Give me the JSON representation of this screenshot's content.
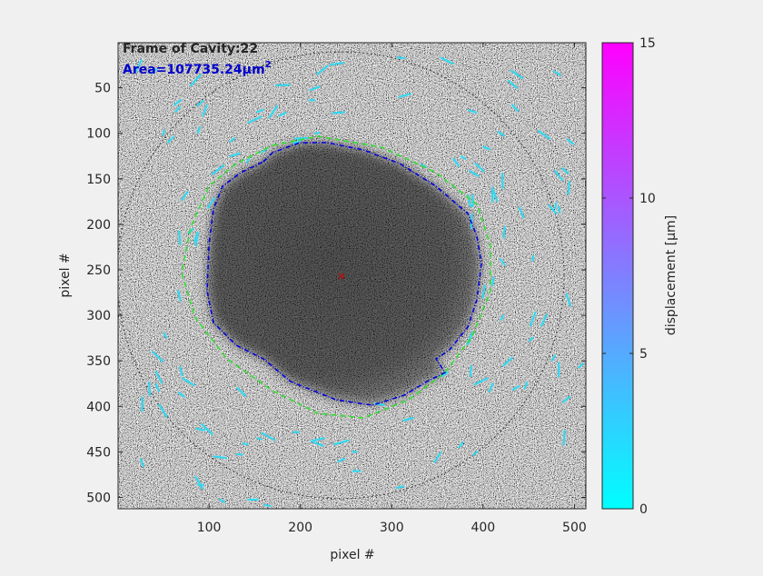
{
  "chart_data": {
    "type": "image",
    "xlabel": "pixel #",
    "ylabel": "pixel #",
    "xlim": [
      0.5,
      512.5
    ],
    "ylim": [
      0.5,
      512.5
    ],
    "y_reversed": true,
    "xticks": [
      100,
      200,
      300,
      400,
      500
    ],
    "yticks": [
      50,
      100,
      150,
      200,
      250,
      300,
      350,
      400,
      450,
      500
    ],
    "frame_label": "Frame of Cavity:22",
    "frame_label_color": "#33ff33",
    "area_label": {
      "text": "Area=107735.24μm",
      "superscript": "2"
    },
    "area_label_color": "#0000cc",
    "centroid": {
      "x": 245,
      "y": 257,
      "color": "#cc0000"
    },
    "colorbar": {
      "label": "displacement [μm]",
      "clim": [
        0,
        15
      ],
      "ticks": [
        0,
        5,
        10,
        15
      ],
      "colors": [
        "#00ffff",
        "#ff00ff"
      ]
    }
  }
}
